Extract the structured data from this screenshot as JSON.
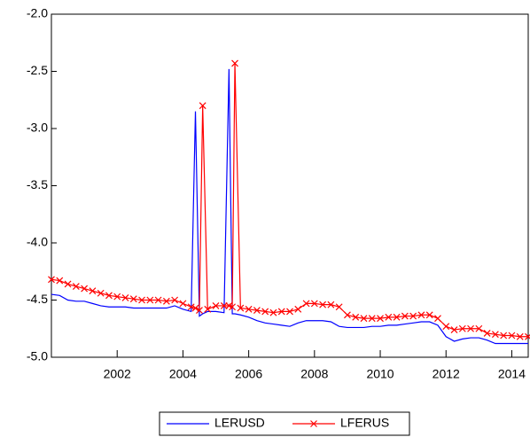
{
  "chart_data": {
    "type": "line",
    "x": [
      2000,
      2000.25,
      2000.5,
      2000.75,
      2001,
      2001.25,
      2001.5,
      2001.75,
      2002,
      2002.25,
      2002.5,
      2002.75,
      2003,
      2003.25,
      2003.5,
      2003.75,
      2004,
      2004.25,
      2004.38,
      2004.5,
      2004.6,
      2004.75,
      2005,
      2005.25,
      2005.4,
      2005.5,
      2005.58,
      2005.75,
      2006,
      2006.25,
      2006.5,
      2006.75,
      2007,
      2007.25,
      2007.5,
      2007.75,
      2008,
      2008.25,
      2008.5,
      2008.75,
      2009,
      2009.25,
      2009.5,
      2009.75,
      2010,
      2010.25,
      2010.5,
      2010.75,
      2011,
      2011.25,
      2011.5,
      2011.75,
      2012,
      2012.25,
      2012.5,
      2012.75,
      2013,
      2013.25,
      2013.5,
      2013.75,
      2014,
      2014.25,
      2014.5
    ],
    "series": [
      {
        "name": "LERUSD",
        "color": "#0000ff",
        "marker": "none",
        "values": [
          -4.45,
          -4.46,
          -4.5,
          -4.51,
          -4.51,
          -4.53,
          -4.55,
          -4.56,
          -4.56,
          -4.56,
          -4.57,
          -4.57,
          -4.57,
          -4.57,
          -4.57,
          -4.55,
          -4.58,
          -4.6,
          -2.85,
          -4.64,
          -4.62,
          -4.6,
          -4.6,
          -4.61,
          -2.48,
          -4.62,
          -4.62,
          -4.63,
          -4.65,
          -4.68,
          -4.7,
          -4.71,
          -4.72,
          -4.73,
          -4.7,
          -4.68,
          -4.68,
          -4.68,
          -4.69,
          -4.73,
          -4.74,
          -4.74,
          -4.74,
          -4.73,
          -4.73,
          -4.72,
          -4.72,
          -4.71,
          -4.7,
          -4.69,
          -4.69,
          -4.72,
          -4.82,
          -4.86,
          -4.84,
          -4.83,
          -4.83,
          -4.85,
          -4.88,
          -4.88,
          -4.88,
          -4.88,
          -4.88
        ]
      },
      {
        "name": "LFERUS",
        "color": "#ff0000",
        "marker": "x",
        "values": [
          -4.32,
          -4.33,
          -4.36,
          -4.38,
          -4.4,
          -4.42,
          -4.44,
          -4.46,
          -4.47,
          -4.48,
          -4.49,
          -4.5,
          -4.5,
          -4.5,
          -4.51,
          -4.5,
          -4.53,
          -4.56,
          -4.57,
          -4.59,
          -2.8,
          -4.58,
          -4.55,
          -4.55,
          -4.55,
          -4.56,
          -2.43,
          -4.57,
          -4.58,
          -4.59,
          -4.6,
          -4.61,
          -4.6,
          -4.6,
          -4.58,
          -4.53,
          -4.53,
          -4.54,
          -4.54,
          -4.56,
          -4.63,
          -4.65,
          -4.66,
          -4.66,
          -4.66,
          -4.65,
          -4.65,
          -4.64,
          -4.64,
          -4.63,
          -4.63,
          -4.66,
          -4.73,
          -4.76,
          -4.75,
          -4.75,
          -4.75,
          -4.79,
          -4.8,
          -4.81,
          -4.81,
          -4.82,
          -4.82
        ]
      }
    ],
    "xlim": [
      2000,
      2014.5
    ],
    "xticks": [
      2002,
      2004,
      2006,
      2008,
      2010,
      2012,
      2014
    ],
    "ylim": [
      -5,
      -2
    ],
    "yticks": [
      {
        "value": -5,
        "label": "-5.0"
      },
      -4.5,
      {
        "value": -4,
        "label": "-4.0"
      },
      -3.5,
      {
        "value": -3,
        "label": "-3.0"
      },
      -2.5,
      {
        "value": -2,
        "label": "-2.0"
      }
    ],
    "grid": false,
    "legend": "bottom"
  }
}
